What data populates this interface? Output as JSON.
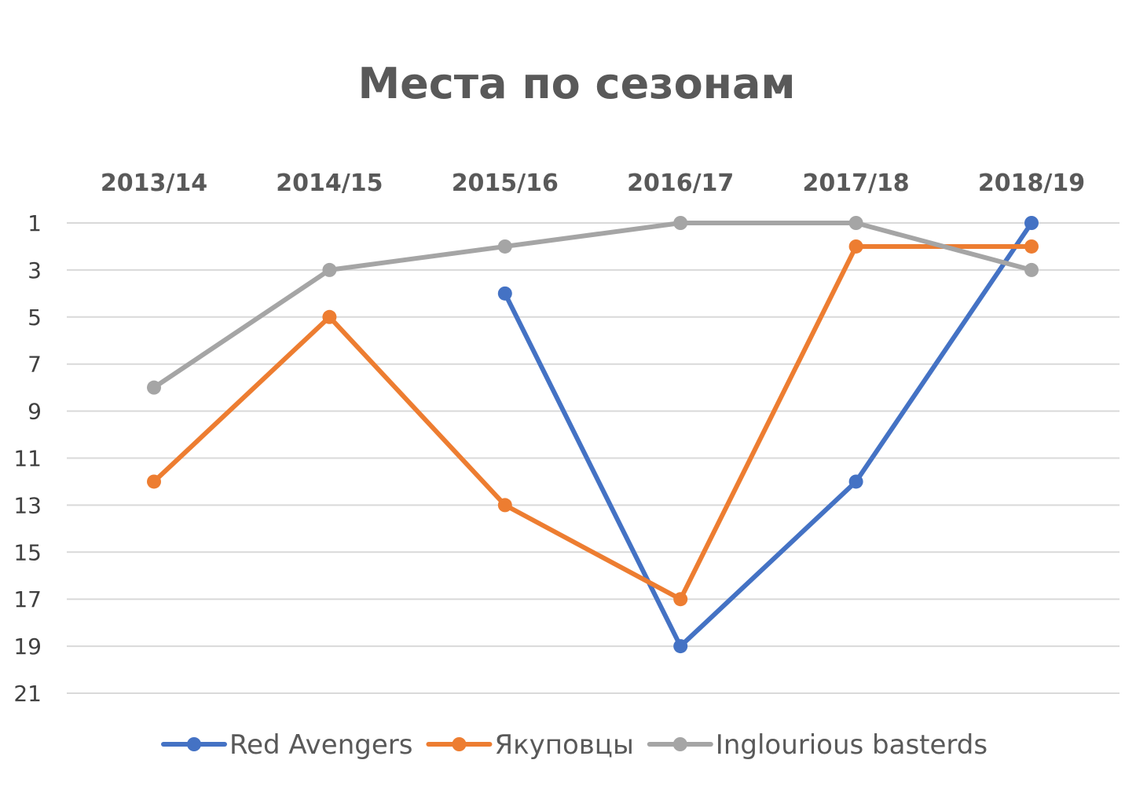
{
  "chart_data": {
    "type": "line",
    "title": "Места по сезонам",
    "xlabel": "",
    "ylabel": "",
    "categories": [
      "2013/14",
      "2014/15",
      "2015/16",
      "2016/17",
      "2017/18",
      "2018/19"
    ],
    "y_ticks": [
      1,
      3,
      5,
      7,
      9,
      11,
      13,
      15,
      17,
      19,
      21
    ],
    "ylim": [
      1,
      21
    ],
    "y_reversed": true,
    "x_axis_position": "top",
    "grid": true,
    "legend_position": "bottom",
    "series": [
      {
        "name": "Red Avengers",
        "color": "#4472c4",
        "values": [
          null,
          null,
          4,
          19,
          12,
          1
        ]
      },
      {
        "name": "Якуповцы",
        "color": "#ed7d31",
        "values": [
          12,
          5,
          13,
          17,
          2,
          2
        ]
      },
      {
        "name": "Inglourious basterds",
        "color": "#a5a5a5",
        "values": [
          8,
          3,
          2,
          1,
          1,
          3
        ]
      }
    ]
  }
}
